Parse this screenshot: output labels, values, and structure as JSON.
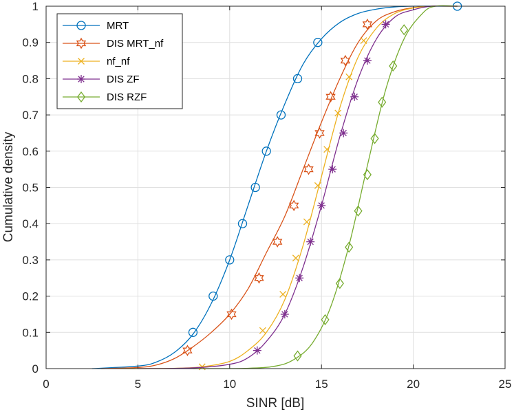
{
  "chart_data": {
    "type": "line",
    "xlabel": "SINR [dB]",
    "ylabel": "Cumulative density",
    "xlim": [
      0,
      25
    ],
    "ylim": [
      0,
      1
    ],
    "xticks": [
      0,
      5,
      10,
      15,
      20,
      25
    ],
    "yticks": [
      0,
      0.1,
      0.2,
      0.3,
      0.4,
      0.5,
      0.6,
      0.7,
      0.8,
      0.9,
      1
    ],
    "xtick_labels": [
      "0",
      "5",
      "10",
      "15",
      "20",
      "25"
    ],
    "ytick_labels": [
      "0",
      "0.1",
      "0.2",
      "0.3",
      "0.4",
      "0.5",
      "0.6",
      "0.7",
      "0.8",
      "0.9",
      "1"
    ],
    "grid": true,
    "legend_position": "top-left",
    "series": [
      {
        "name": "MRT",
        "color": "#0072BD",
        "marker": "circle",
        "curve": [
          [
            2.5,
            0
          ],
          [
            5,
            0.007
          ],
          [
            6,
            0.018
          ],
          [
            7,
            0.045
          ],
          [
            8,
            0.095
          ],
          [
            9,
            0.18
          ],
          [
            10,
            0.3
          ],
          [
            11,
            0.45
          ],
          [
            12,
            0.6
          ],
          [
            13,
            0.73
          ],
          [
            14,
            0.84
          ],
          [
            15,
            0.91
          ],
          [
            16,
            0.955
          ],
          [
            17,
            0.98
          ],
          [
            18,
            0.992
          ],
          [
            19,
            0.998
          ],
          [
            20,
            1
          ],
          [
            22.4,
            1
          ]
        ],
        "markers": [
          [
            8.0,
            0.1
          ],
          [
            9.1,
            0.2
          ],
          [
            10.0,
            0.3
          ],
          [
            10.7,
            0.4
          ],
          [
            11.4,
            0.5
          ],
          [
            12.0,
            0.6
          ],
          [
            12.8,
            0.7
          ],
          [
            13.7,
            0.8
          ],
          [
            14.8,
            0.9
          ],
          [
            22.4,
            1.0
          ]
        ]
      },
      {
        "name": "DIS MRT_nf",
        "color": "#D95319",
        "marker": "hexagram",
        "curve": [
          [
            3,
            0
          ],
          [
            5,
            0.003
          ],
          [
            6,
            0.01
          ],
          [
            7,
            0.028
          ],
          [
            8,
            0.06
          ],
          [
            9,
            0.1
          ],
          [
            10,
            0.15
          ],
          [
            11,
            0.22
          ],
          [
            12,
            0.32
          ],
          [
            13,
            0.42
          ],
          [
            14,
            0.55
          ],
          [
            15,
            0.68
          ],
          [
            16,
            0.8
          ],
          [
            17,
            0.9
          ],
          [
            18,
            0.96
          ],
          [
            19,
            0.985
          ],
          [
            20,
            0.996
          ],
          [
            21,
            1
          ],
          [
            22.4,
            1
          ]
        ],
        "markers": [
          [
            7.7,
            0.05
          ],
          [
            10.1,
            0.15
          ],
          [
            11.6,
            0.25
          ],
          [
            12.6,
            0.35
          ],
          [
            13.5,
            0.45
          ],
          [
            14.3,
            0.55
          ],
          [
            14.9,
            0.65
          ],
          [
            15.5,
            0.75
          ],
          [
            16.3,
            0.85
          ],
          [
            17.5,
            0.95
          ]
        ]
      },
      {
        "name": "nf_nf",
        "color": "#EDB120",
        "marker": "x",
        "curve": [
          [
            4,
            0
          ],
          [
            7,
            0.001
          ],
          [
            8.5,
            0.005
          ],
          [
            10,
            0.02
          ],
          [
            11,
            0.05
          ],
          [
            12,
            0.1
          ],
          [
            13,
            0.19
          ],
          [
            14,
            0.34
          ],
          [
            15,
            0.53
          ],
          [
            16,
            0.72
          ],
          [
            17,
            0.86
          ],
          [
            18,
            0.94
          ],
          [
            19,
            0.98
          ],
          [
            20,
            0.995
          ],
          [
            21,
            1
          ],
          [
            22.4,
            1
          ]
        ],
        "markers": [
          [
            8.5,
            0.005
          ],
          [
            11.8,
            0.105
          ],
          [
            12.9,
            0.205
          ],
          [
            13.6,
            0.305
          ],
          [
            14.2,
            0.405
          ],
          [
            14.8,
            0.505
          ],
          [
            15.3,
            0.605
          ],
          [
            15.9,
            0.705
          ],
          [
            16.5,
            0.805
          ],
          [
            17.3,
            0.905
          ]
        ]
      },
      {
        "name": "DIS ZF",
        "color": "#7E2F8E",
        "marker": "asterisk",
        "curve": [
          [
            5,
            0
          ],
          [
            8,
            0.002
          ],
          [
            10,
            0.012
          ],
          [
            11,
            0.03
          ],
          [
            12,
            0.075
          ],
          [
            13,
            0.15
          ],
          [
            14,
            0.28
          ],
          [
            15,
            0.45
          ],
          [
            16,
            0.64
          ],
          [
            17,
            0.8
          ],
          [
            18,
            0.91
          ],
          [
            19,
            0.97
          ],
          [
            20,
            0.99
          ],
          [
            21,
            1
          ],
          [
            22.4,
            1
          ]
        ],
        "markers": [
          [
            11.5,
            0.05
          ],
          [
            13.0,
            0.15
          ],
          [
            13.8,
            0.25
          ],
          [
            14.4,
            0.35
          ],
          [
            15.0,
            0.45
          ],
          [
            15.6,
            0.55
          ],
          [
            16.2,
            0.65
          ],
          [
            16.8,
            0.75
          ],
          [
            17.5,
            0.85
          ],
          [
            18.5,
            0.95
          ]
        ]
      },
      {
        "name": "DIS RZF",
        "color": "#77AC30",
        "marker": "diamond",
        "curve": [
          [
            8,
            0
          ],
          [
            11,
            0.001
          ],
          [
            12.5,
            0.007
          ],
          [
            13.5,
            0.025
          ],
          [
            14.5,
            0.07
          ],
          [
            15.5,
            0.17
          ],
          [
            16.5,
            0.34
          ],
          [
            17.5,
            0.56
          ],
          [
            18.5,
            0.77
          ],
          [
            19.5,
            0.91
          ],
          [
            20.5,
            0.98
          ],
          [
            21.2,
            1
          ],
          [
            22.4,
            1
          ]
        ],
        "markers": [
          [
            13.7,
            0.035
          ],
          [
            15.2,
            0.135
          ],
          [
            16.0,
            0.235
          ],
          [
            16.5,
            0.335
          ],
          [
            17.0,
            0.435
          ],
          [
            17.5,
            0.535
          ],
          [
            17.9,
            0.635
          ],
          [
            18.3,
            0.735
          ],
          [
            18.9,
            0.835
          ],
          [
            19.5,
            0.935
          ]
        ]
      }
    ]
  }
}
